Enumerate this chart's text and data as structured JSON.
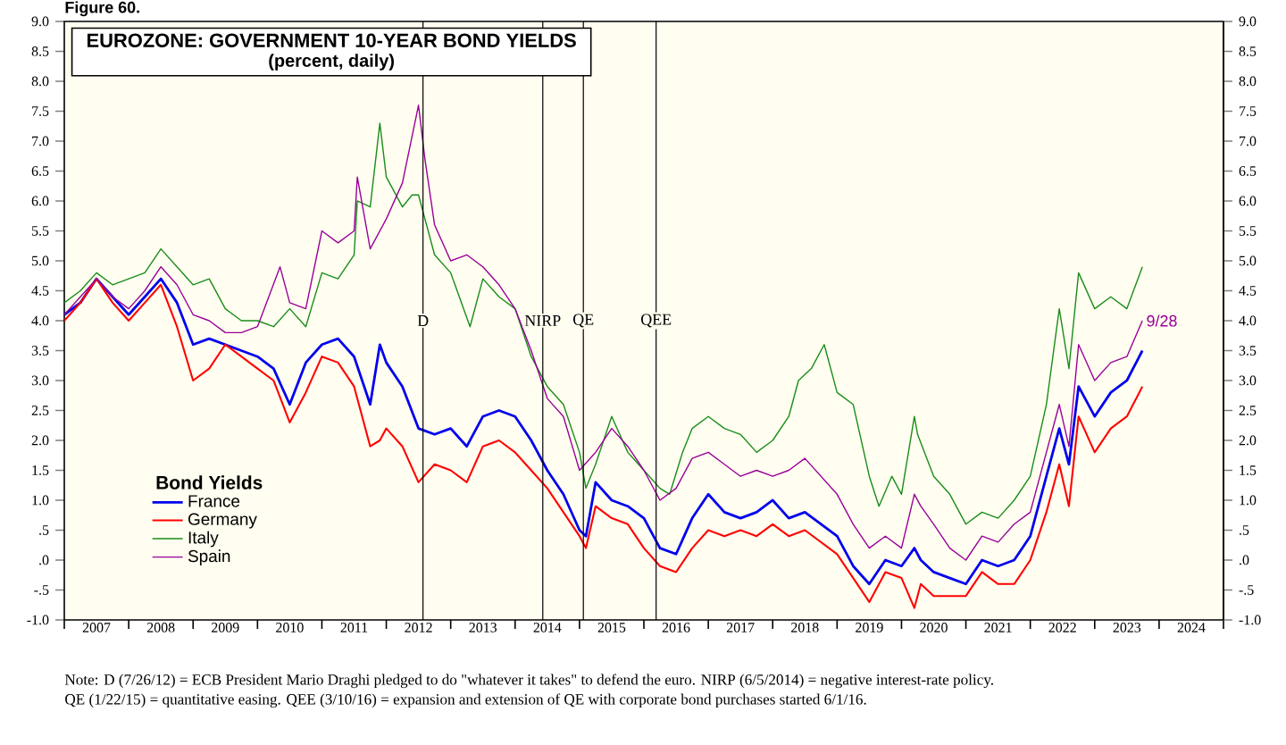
{
  "chart_data": {
    "type": "line",
    "title": "EUROZONE: GOVERNMENT 10-YEAR BOND YIELDS",
    "subtitle": "(percent, daily)",
    "legend_title": "Bond Yields",
    "legend": "bottom left",
    "xlim": [
      2007,
      2025
    ],
    "xticks": [
      {
        "value": 2007,
        "label": null
      },
      {
        "value": 2008,
        "label": null
      },
      {
        "value": 2009,
        "label": null
      },
      {
        "value": 2010,
        "label": null
      },
      {
        "value": 2011,
        "label": null
      },
      {
        "value": 2012,
        "label": null
      },
      {
        "value": 2013,
        "label": null
      },
      {
        "value": 2014,
        "label": null
      },
      {
        "value": 2015,
        "label": null
      },
      {
        "value": 2016,
        "label": null
      },
      {
        "value": 2017,
        "label": null
      },
      {
        "value": 2018,
        "label": null
      },
      {
        "value": 2019,
        "label": null
      },
      {
        "value": 2020,
        "label": null
      },
      {
        "value": 2021,
        "label": null
      },
      {
        "value": 2022,
        "label": null
      },
      {
        "value": 2023,
        "label": null
      },
      {
        "value": 2024,
        "label": null
      },
      {
        "value": 2025,
        "label": null
      },
      {
        "value": 2007.5,
        "label": "2007"
      },
      {
        "value": 2008.5,
        "label": "2008"
      },
      {
        "value": 2009.5,
        "label": "2009"
      },
      {
        "value": 2010.5,
        "label": "2010"
      },
      {
        "value": 2011.5,
        "label": "2011"
      },
      {
        "value": 2012.5,
        "label": "2012"
      },
      {
        "value": 2013.5,
        "label": "2013"
      },
      {
        "value": 2014.5,
        "label": "2014"
      },
      {
        "value": 2015.5,
        "label": "2015"
      },
      {
        "value": 2016.5,
        "label": "2016"
      },
      {
        "value": 2017.5,
        "label": "2017"
      },
      {
        "value": 2018.5,
        "label": "2018"
      },
      {
        "value": 2019.5,
        "label": "2019"
      },
      {
        "value": 2020.5,
        "label": "2020"
      },
      {
        "value": 2021.5,
        "label": "2021"
      },
      {
        "value": 2022.5,
        "label": "2022"
      },
      {
        "value": 2023.5,
        "label": "2023"
      },
      {
        "value": 2024.5,
        "label": "2024"
      }
    ],
    "ylim": [
      -1,
      9
    ],
    "yticks": [
      {
        "value": -1,
        "label": "-1.0"
      },
      {
        "value": -0.5,
        "label": "-.5"
      },
      {
        "value": 0,
        "label": ".0"
      },
      {
        "value": 0.5,
        "label": ".5"
      },
      {
        "value": 1,
        "label": "1.0"
      },
      {
        "value": 1.5,
        "label": "1.5"
      },
      {
        "value": 2,
        "label": "2.0"
      },
      {
        "value": 2.5,
        "label": "2.5"
      },
      {
        "value": 3,
        "label": "3.0"
      },
      {
        "value": 3.5,
        "label": "3.5"
      },
      {
        "value": 4,
        "label": "4.0"
      },
      {
        "value": 4.5,
        "label": "4.5"
      },
      {
        "value": 5,
        "label": "5.0"
      },
      {
        "value": 5.5,
        "label": "5.5"
      },
      {
        "value": 6,
        "label": "6.0"
      },
      {
        "value": 6.5,
        "label": "6.5"
      },
      {
        "value": 7,
        "label": "7.0"
      },
      {
        "value": 7.5,
        "label": "7.5"
      },
      {
        "value": 8,
        "label": "8.0"
      },
      {
        "value": 8.5,
        "label": "8.5"
      },
      {
        "value": 9,
        "label": "9.0"
      }
    ],
    "y2lim": [
      -1,
      9
    ],
    "y2ticks": [
      {
        "value": -1,
        "label": "-1.0"
      },
      {
        "value": -0.5,
        "label": "-.5"
      },
      {
        "value": 0,
        "label": ".0"
      },
      {
        "value": 0.5,
        "label": ".5"
      },
      {
        "value": 1,
        "label": "1.0"
      },
      {
        "value": 1.5,
        "label": "1.5"
      },
      {
        "value": 2,
        "label": "2.0"
      },
      {
        "value": 2.5,
        "label": "2.5"
      },
      {
        "value": 3,
        "label": "3.0"
      },
      {
        "value": 3.5,
        "label": "3.5"
      },
      {
        "value": 4,
        "label": "4.0"
      },
      {
        "value": 4.5,
        "label": "4.5"
      },
      {
        "value": 5,
        "label": "5.0"
      },
      {
        "value": 5.5,
        "label": "5.5"
      },
      {
        "value": 6,
        "label": "6.0"
      },
      {
        "value": 6.5,
        "label": "6.5"
      },
      {
        "value": 7,
        "label": "7.0"
      },
      {
        "value": 7.5,
        "label": "7.5"
      },
      {
        "value": 8,
        "label": "8.0"
      },
      {
        "value": 8.5,
        "label": "8.5"
      },
      {
        "value": 9,
        "label": "9.0"
      }
    ],
    "series": [
      {
        "name": "France",
        "color": "#0000ee",
        "x": [
          2007,
          2007.25,
          2007.5,
          2007.75,
          2008,
          2008.25,
          2008.5,
          2008.75,
          2009,
          2009.25,
          2009.5,
          2009.75,
          2010,
          2010.25,
          2010.5,
          2010.75,
          2011,
          2011.25,
          2011.5,
          2011.75,
          2011.9,
          2012,
          2012.25,
          2012.5,
          2012.75,
          2013,
          2013.25,
          2013.5,
          2013.75,
          2014,
          2014.25,
          2014.5,
          2014.75,
          2015,
          2015.1,
          2015.25,
          2015.5,
          2015.75,
          2016,
          2016.25,
          2016.5,
          2016.75,
          2017,
          2017.25,
          2017.5,
          2017.75,
          2018,
          2018.25,
          2018.5,
          2018.75,
          2019,
          2019.25,
          2019.5,
          2019.75,
          2020,
          2020.2,
          2020.3,
          2020.5,
          2020.75,
          2021,
          2021.25,
          2021.5,
          2021.75,
          2022,
          2022.25,
          2022.45,
          2022.6,
          2022.75,
          2023,
          2023.25,
          2023.5,
          2023.74
        ],
        "values": [
          4.1,
          4.3,
          4.7,
          4.4,
          4.1,
          4.4,
          4.7,
          4.3,
          3.6,
          3.7,
          3.6,
          3.5,
          3.4,
          3.2,
          2.6,
          3.3,
          3.6,
          3.7,
          3.4,
          2.6,
          3.6,
          3.3,
          2.9,
          2.2,
          2.1,
          2.2,
          1.9,
          2.4,
          2.5,
          2.4,
          2.0,
          1.5,
          1.1,
          0.5,
          0.4,
          1.3,
          1.0,
          0.9,
          0.7,
          0.2,
          0.1,
          0.7,
          1.1,
          0.8,
          0.7,
          0.8,
          1.0,
          0.7,
          0.8,
          0.6,
          0.4,
          -0.1,
          -0.4,
          0.0,
          -0.1,
          0.2,
          0.0,
          -0.2,
          -0.3,
          -0.4,
          0.0,
          -0.1,
          0.0,
          0.4,
          1.4,
          2.2,
          1.6,
          2.9,
          2.4,
          2.8,
          3.0,
          3.5
        ]
      },
      {
        "name": "Germany",
        "color": "#ff0000",
        "x": [
          2007,
          2007.25,
          2007.5,
          2007.75,
          2008,
          2008.25,
          2008.5,
          2008.75,
          2009,
          2009.25,
          2009.5,
          2009.75,
          2010,
          2010.25,
          2010.5,
          2010.75,
          2011,
          2011.25,
          2011.5,
          2011.75,
          2011.9,
          2012,
          2012.25,
          2012.5,
          2012.75,
          2013,
          2013.25,
          2013.5,
          2013.75,
          2014,
          2014.25,
          2014.5,
          2014.75,
          2015,
          2015.1,
          2015.25,
          2015.5,
          2015.75,
          2016,
          2016.25,
          2016.5,
          2016.75,
          2017,
          2017.25,
          2017.5,
          2017.75,
          2018,
          2018.25,
          2018.5,
          2018.75,
          2019,
          2019.25,
          2019.5,
          2019.75,
          2020,
          2020.2,
          2020.3,
          2020.5,
          2020.75,
          2021,
          2021.25,
          2021.5,
          2021.75,
          2022,
          2022.25,
          2022.45,
          2022.6,
          2022.75,
          2023,
          2023.25,
          2023.5,
          2023.74
        ],
        "values": [
          4.0,
          4.3,
          4.7,
          4.3,
          4.0,
          4.3,
          4.6,
          3.9,
          3.0,
          3.2,
          3.6,
          3.4,
          3.2,
          3.0,
          2.3,
          2.8,
          3.4,
          3.3,
          2.9,
          1.9,
          2.0,
          2.2,
          1.9,
          1.3,
          1.6,
          1.5,
          1.3,
          1.9,
          2.0,
          1.8,
          1.5,
          1.2,
          0.8,
          0.4,
          0.2,
          0.9,
          0.7,
          0.6,
          0.2,
          -0.1,
          -0.2,
          0.2,
          0.5,
          0.4,
          0.5,
          0.4,
          0.6,
          0.4,
          0.5,
          0.3,
          0.1,
          -0.3,
          -0.7,
          -0.2,
          -0.3,
          -0.8,
          -0.4,
          -0.6,
          -0.6,
          -0.6,
          -0.2,
          -0.4,
          -0.4,
          0.0,
          0.8,
          1.6,
          0.9,
          2.4,
          1.8,
          2.2,
          2.4,
          2.9
        ]
      },
      {
        "name": "Italy",
        "color": "#1a8c1a",
        "x": [
          2007,
          2007.25,
          2007.5,
          2007.75,
          2008,
          2008.25,
          2008.5,
          2008.75,
          2009,
          2009.25,
          2009.5,
          2009.75,
          2010,
          2010.25,
          2010.5,
          2010.75,
          2011,
          2011.25,
          2011.5,
          2011.55,
          2011.75,
          2011.9,
          2012,
          2012.25,
          2012.4,
          2012.5,
          2012.75,
          2013,
          2013.3,
          2013.5,
          2013.75,
          2014,
          2014.25,
          2014.5,
          2014.75,
          2015,
          2015.1,
          2015.25,
          2015.5,
          2015.75,
          2016,
          2016.25,
          2016.4,
          2016.6,
          2016.75,
          2017,
          2017.25,
          2017.5,
          2017.75,
          2018,
          2018.25,
          2018.4,
          2018.6,
          2018.8,
          2019,
          2019.25,
          2019.5,
          2019.65,
          2019.85,
          2020,
          2020.2,
          2020.25,
          2020.5,
          2020.75,
          2021,
          2021.25,
          2021.5,
          2021.75,
          2022,
          2022.25,
          2022.45,
          2022.6,
          2022.75,
          2023,
          2023.25,
          2023.5,
          2023.74
        ],
        "values": [
          4.3,
          4.5,
          4.8,
          4.6,
          4.7,
          4.8,
          5.2,
          4.9,
          4.6,
          4.7,
          4.2,
          4.0,
          4.0,
          3.9,
          4.2,
          3.9,
          4.8,
          4.7,
          5.1,
          6.0,
          5.9,
          7.3,
          6.4,
          5.9,
          6.1,
          6.1,
          5.1,
          4.8,
          3.9,
          4.7,
          4.4,
          4.2,
          3.4,
          2.9,
          2.6,
          1.8,
          1.2,
          1.6,
          2.4,
          1.8,
          1.5,
          1.2,
          1.1,
          1.8,
          2.2,
          2.4,
          2.2,
          2.1,
          1.8,
          2.0,
          2.4,
          3.0,
          3.2,
          3.6,
          2.8,
          2.6,
          1.4,
          0.9,
          1.4,
          1.1,
          2.4,
          2.1,
          1.4,
          1.1,
          0.6,
          0.8,
          0.7,
          1.0,
          1.4,
          2.6,
          4.2,
          3.2,
          4.8,
          4.2,
          4.4,
          4.2,
          4.9
        ]
      },
      {
        "name": "Spain",
        "color": "#990099",
        "x": [
          2007,
          2007.25,
          2007.5,
          2007.75,
          2008,
          2008.25,
          2008.5,
          2008.75,
          2009,
          2009.25,
          2009.5,
          2009.75,
          2010,
          2010.35,
          2010.5,
          2010.75,
          2011,
          2011.25,
          2011.5,
          2011.55,
          2011.75,
          2012,
          2012.25,
          2012.5,
          2012.6,
          2012.75,
          2013,
          2013.25,
          2013.5,
          2013.75,
          2014,
          2014.25,
          2014.5,
          2014.75,
          2015,
          2015.25,
          2015.5,
          2015.75,
          2016,
          2016.25,
          2016.5,
          2016.75,
          2017,
          2017.25,
          2017.5,
          2017.75,
          2018,
          2018.25,
          2018.5,
          2018.75,
          2019,
          2019.25,
          2019.5,
          2019.75,
          2020,
          2020.2,
          2020.3,
          2020.5,
          2020.75,
          2021,
          2021.25,
          2021.5,
          2021.75,
          2022,
          2022.25,
          2022.45,
          2022.6,
          2022.75,
          2023,
          2023.25,
          2023.5,
          2023.74
        ],
        "values": [
          4.1,
          4.4,
          4.7,
          4.4,
          4.2,
          4.5,
          4.9,
          4.6,
          4.1,
          4.0,
          3.8,
          3.8,
          3.9,
          4.9,
          4.3,
          4.2,
          5.5,
          5.3,
          5.5,
          6.4,
          5.2,
          5.7,
          6.3,
          7.6,
          6.7,
          5.6,
          5.0,
          5.1,
          4.9,
          4.6,
          4.2,
          3.5,
          2.7,
          2.4,
          1.5,
          1.8,
          2.2,
          1.9,
          1.5,
          1.0,
          1.2,
          1.7,
          1.8,
          1.6,
          1.4,
          1.5,
          1.4,
          1.5,
          1.7,
          1.4,
          1.1,
          0.6,
          0.2,
          0.4,
          0.2,
          1.1,
          0.9,
          0.6,
          0.2,
          0.0,
          0.4,
          0.3,
          0.6,
          0.8,
          1.8,
          2.6,
          1.9,
          3.6,
          3.0,
          3.3,
          3.4,
          4.0
        ]
      }
    ],
    "ref_lines": [
      {
        "axis": "x",
        "value": 2012.57,
        "label": "D"
      },
      {
        "axis": "x",
        "value": 2014.43,
        "label": "NIRP"
      },
      {
        "axis": "x",
        "value": 2015.06,
        "label": "QE"
      },
      {
        "axis": "x",
        "value": 2016.19,
        "label": "QEE"
      }
    ],
    "annotations": [
      "Figure 60.",
      {
        "text": "9/28",
        "x": 2023.74,
        "y": 4.0
      },
      "Note: D (7/26/12) = ECB President Mario Draghi pledged to do \"whatever it takes\" to defend the euro. NIRP (6/5/2014) = negative interest-rate policy.",
      "QE (1/22/15) = quantitative easing. QEE (3/10/16) = expansion and extension of QE with corporate bond purchases started 6/1/16."
    ]
  }
}
